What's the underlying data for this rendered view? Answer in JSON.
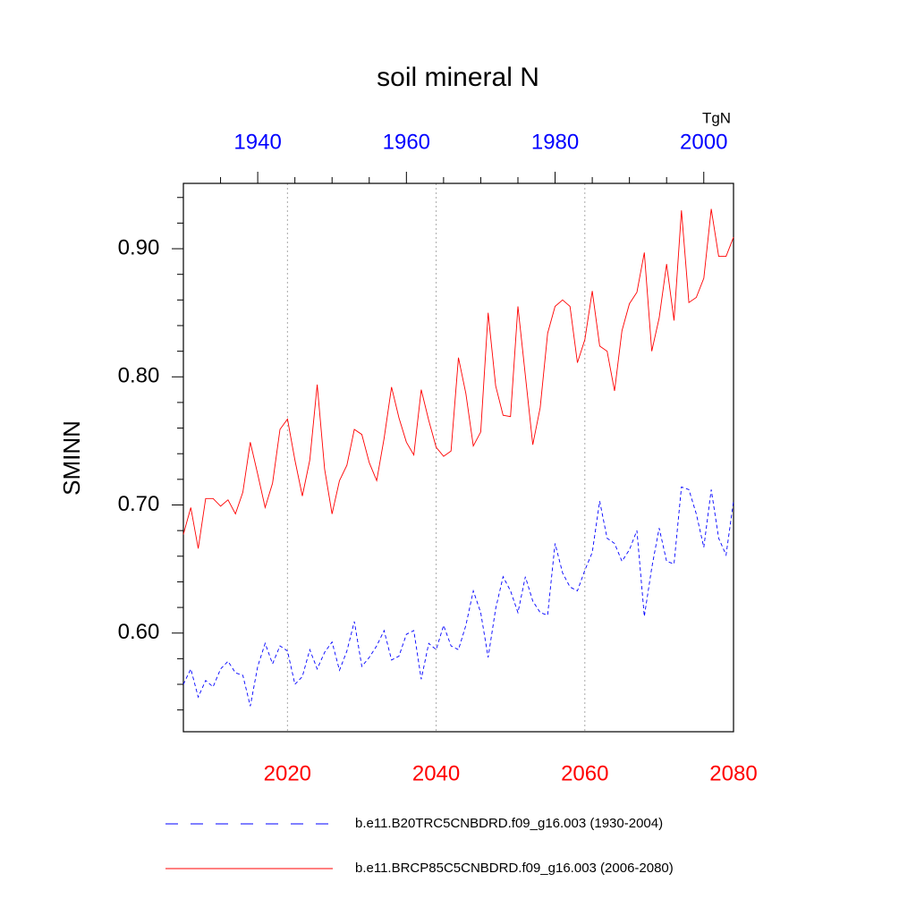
{
  "chart_data": {
    "type": "line",
    "title": "soil mineral N",
    "ylabel": "SMINN",
    "units": "TgN",
    "xlim": [
      2006,
      2080
    ],
    "xticks": [
      2020,
      2040,
      2060,
      2080
    ],
    "xtick_color": "#ff0000",
    "x2lim": [
      1930,
      2004
    ],
    "x2ticks": [
      1940,
      1960,
      1980,
      2000
    ],
    "x2tick_color": "#0000ff",
    "x2minorticks": [
      1935,
      1945,
      1950,
      1955,
      1965,
      1970,
      1975,
      1985,
      1990,
      1995
    ],
    "ylim": [
      0.523,
      0.951
    ],
    "yticks": [
      {
        "value": 0.6,
        "label": "0.60"
      },
      {
        "value": 0.7,
        "label": "0.70"
      },
      {
        "value": 0.8,
        "label": "0.80"
      },
      {
        "value": 0.9,
        "label": "0.90"
      }
    ],
    "yminorticks": [
      0.54,
      0.56,
      0.58,
      0.62,
      0.64,
      0.66,
      0.68,
      0.72,
      0.74,
      0.76,
      0.78,
      0.82,
      0.84,
      0.86,
      0.88,
      0.92,
      0.94
    ],
    "grid": true,
    "series": [
      {
        "name": "b.e11.B20TRC5CNBDRD.f09_g16.003 (1930-2004)",
        "color": "#0000ff",
        "dash": true,
        "axis": "x2",
        "x": [
          1930,
          1931,
          1932,
          1933,
          1934,
          1935,
          1936,
          1937,
          1938,
          1939,
          1940,
          1941,
          1942,
          1943,
          1944,
          1945,
          1946,
          1947,
          1948,
          1949,
          1950,
          1951,
          1952,
          1953,
          1954,
          1955,
          1956,
          1957,
          1958,
          1959,
          1960,
          1961,
          1962,
          1963,
          1964,
          1965,
          1966,
          1967,
          1968,
          1969,
          1970,
          1971,
          1972,
          1973,
          1974,
          1975,
          1976,
          1977,
          1978,
          1979,
          1980,
          1981,
          1982,
          1983,
          1984,
          1985,
          1986,
          1987,
          1988,
          1989,
          1990,
          1991,
          1992,
          1993,
          1994,
          1995,
          1996,
          1997,
          1998,
          1999,
          2000,
          2001,
          2002,
          2003,
          2004
        ],
        "values": [
          0.56,
          0.572,
          0.55,
          0.563,
          0.558,
          0.572,
          0.578,
          0.569,
          0.567,
          0.543,
          0.574,
          0.592,
          0.576,
          0.59,
          0.586,
          0.56,
          0.566,
          0.587,
          0.572,
          0.585,
          0.593,
          0.571,
          0.586,
          0.609,
          0.574,
          0.581,
          0.59,
          0.602,
          0.579,
          0.582,
          0.599,
          0.602,
          0.564,
          0.592,
          0.587,
          0.606,
          0.59,
          0.587,
          0.606,
          0.633,
          0.616,
          0.581,
          0.619,
          0.644,
          0.633,
          0.616,
          0.644,
          0.625,
          0.616,
          0.614,
          0.67,
          0.647,
          0.636,
          0.633,
          0.649,
          0.663,
          0.703,
          0.674,
          0.67,
          0.656,
          0.665,
          0.68,
          0.613,
          0.651,
          0.682,
          0.656,
          0.654,
          0.714,
          0.712,
          0.693,
          0.667,
          0.712,
          0.674,
          0.661,
          0.703
        ]
      },
      {
        "name": "b.e11.BRCP85C5CNBDRD.f09_g16.003 (2006-2080)",
        "color": "#ff0000",
        "dash": false,
        "axis": "x",
        "x": [
          2006,
          2007,
          2008,
          2009,
          2010,
          2011,
          2012,
          2013,
          2014,
          2015,
          2016,
          2017,
          2018,
          2019,
          2020,
          2021,
          2022,
          2023,
          2024,
          2025,
          2026,
          2027,
          2028,
          2029,
          2030,
          2031,
          2032,
          2033,
          2034,
          2035,
          2036,
          2037,
          2038,
          2039,
          2040,
          2041,
          2042,
          2043,
          2044,
          2045,
          2046,
          2047,
          2048,
          2049,
          2050,
          2051,
          2052,
          2053,
          2054,
          2055,
          2056,
          2057,
          2058,
          2059,
          2060,
          2061,
          2062,
          2063,
          2064,
          2065,
          2066,
          2067,
          2068,
          2069,
          2070,
          2071,
          2072,
          2073,
          2074,
          2075,
          2076,
          2077,
          2078,
          2079,
          2080
        ],
        "values": [
          0.677,
          0.698,
          0.666,
          0.705,
          0.705,
          0.699,
          0.704,
          0.693,
          0.71,
          0.749,
          0.724,
          0.698,
          0.717,
          0.759,
          0.767,
          0.735,
          0.707,
          0.735,
          0.794,
          0.728,
          0.693,
          0.719,
          0.731,
          0.759,
          0.755,
          0.733,
          0.719,
          0.752,
          0.792,
          0.768,
          0.749,
          0.739,
          0.79,
          0.766,
          0.745,
          0.738,
          0.742,
          0.815,
          0.787,
          0.746,
          0.757,
          0.85,
          0.793,
          0.77,
          0.769,
          0.855,
          0.801,
          0.747,
          0.776,
          0.834,
          0.855,
          0.86,
          0.855,
          0.811,
          0.829,
          0.867,
          0.824,
          0.82,
          0.789,
          0.836,
          0.857,
          0.866,
          0.897,
          0.82,
          0.846,
          0.888,
          0.844,
          0.93,
          0.858,
          0.862,
          0.877,
          0.931,
          0.894,
          0.894,
          0.909
        ]
      }
    ]
  }
}
